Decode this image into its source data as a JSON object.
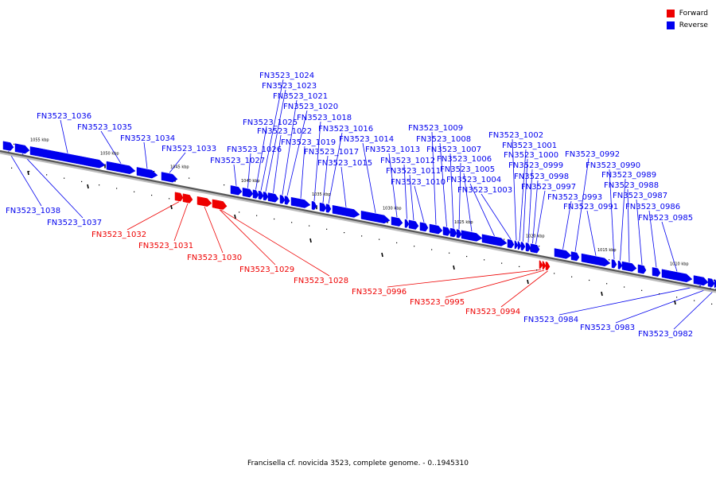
{
  "legend": {
    "forward_label": "Forward",
    "reverse_label": "Reverse",
    "forward_color": "#ee0000",
    "reverse_color": "#0000ee"
  },
  "caption": "Francisella cf. novicida 3523, complete genome. - 0..1945310",
  "backbone": {
    "color": "#9a9a9a"
  },
  "ticks": [
    "1055 kbp",
    "1050 kbp",
    "1045 kbp",
    "1040 kbp",
    "1035 kbp",
    "1030 kbp",
    "1025 kbp",
    "1020 kbp",
    "1015 kbp",
    "1010 kbp"
  ],
  "genes": [
    {
      "name": "FN3523_1038",
      "strand": "reverse"
    },
    {
      "name": "FN3523_1037",
      "strand": "reverse"
    },
    {
      "name": "FN3523_1036",
      "strand": "reverse"
    },
    {
      "name": "FN3523_1035",
      "strand": "reverse"
    },
    {
      "name": "FN3523_1034",
      "strand": "reverse"
    },
    {
      "name": "FN3523_1033",
      "strand": "reverse"
    },
    {
      "name": "FN3523_1032",
      "strand": "forward"
    },
    {
      "name": "FN3523_1031",
      "strand": "forward"
    },
    {
      "name": "FN3523_1030",
      "strand": "forward"
    },
    {
      "name": "FN3523_1029",
      "strand": "forward"
    },
    {
      "name": "FN3523_1028",
      "strand": "forward"
    },
    {
      "name": "FN3523_1027",
      "strand": "reverse"
    },
    {
      "name": "FN3523_1026",
      "strand": "reverse"
    },
    {
      "name": "FN3523_1025",
      "strand": "reverse"
    },
    {
      "name": "FN3523_1024",
      "strand": "reverse"
    },
    {
      "name": "FN3523_1023",
      "strand": "reverse"
    },
    {
      "name": "FN3523_1022",
      "strand": "reverse"
    },
    {
      "name": "FN3523_1021",
      "strand": "reverse"
    },
    {
      "name": "FN3523_1020",
      "strand": "reverse"
    },
    {
      "name": "FN3523_1019",
      "strand": "reverse"
    },
    {
      "name": "FN3523_1018",
      "strand": "reverse"
    },
    {
      "name": "FN3523_1017",
      "strand": "reverse"
    },
    {
      "name": "FN3523_1016",
      "strand": "reverse"
    },
    {
      "name": "FN3523_1015",
      "strand": "reverse"
    },
    {
      "name": "FN3523_1014",
      "strand": "reverse"
    },
    {
      "name": "FN3523_1013",
      "strand": "reverse"
    },
    {
      "name": "FN3523_1012",
      "strand": "reverse"
    },
    {
      "name": "FN3523_1011",
      "strand": "reverse"
    },
    {
      "name": "FN3523_1010",
      "strand": "reverse"
    },
    {
      "name": "FN3523_1009",
      "strand": "reverse"
    },
    {
      "name": "FN3523_1008",
      "strand": "reverse"
    },
    {
      "name": "FN3523_1007",
      "strand": "reverse"
    },
    {
      "name": "FN3523_1006",
      "strand": "reverse"
    },
    {
      "name": "FN3523_1005",
      "strand": "reverse"
    },
    {
      "name": "FN3523_1004",
      "strand": "reverse"
    },
    {
      "name": "FN3523_1003",
      "strand": "reverse"
    },
    {
      "name": "FN3523_1002",
      "strand": "reverse"
    },
    {
      "name": "FN3523_1001",
      "strand": "reverse"
    },
    {
      "name": "FN3523_1000",
      "strand": "reverse"
    },
    {
      "name": "FN3523_0999",
      "strand": "reverse"
    },
    {
      "name": "FN3523_0998",
      "strand": "reverse"
    },
    {
      "name": "FN3523_0997",
      "strand": "reverse"
    },
    {
      "name": "FN3523_0996",
      "strand": "forward"
    },
    {
      "name": "FN3523_0995",
      "strand": "forward"
    },
    {
      "name": "FN3523_0994",
      "strand": "forward"
    },
    {
      "name": "FN3523_0993",
      "strand": "reverse"
    },
    {
      "name": "FN3523_0992",
      "strand": "reverse"
    },
    {
      "name": "FN3523_0991",
      "strand": "reverse"
    },
    {
      "name": "FN3523_0990",
      "strand": "reverse"
    },
    {
      "name": "FN3523_0989",
      "strand": "reverse"
    },
    {
      "name": "FN3523_0988",
      "strand": "reverse"
    },
    {
      "name": "FN3523_0987",
      "strand": "reverse"
    },
    {
      "name": "FN3523_0986",
      "strand": "reverse"
    },
    {
      "name": "FN3523_0985",
      "strand": "reverse"
    },
    {
      "name": "FN3523_0984",
      "strand": "reverse"
    },
    {
      "name": "FN3523_0983",
      "strand": "reverse"
    },
    {
      "name": "FN3523_0982",
      "strand": "reverse"
    }
  ]
}
